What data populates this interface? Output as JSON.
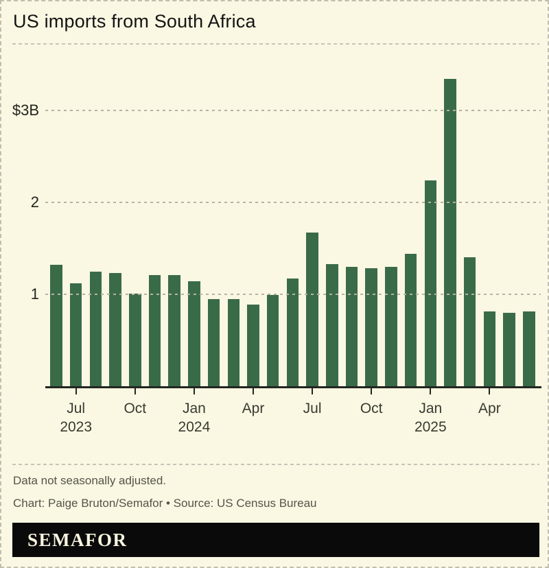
{
  "header": {
    "title": "US imports from South Africa"
  },
  "chart_data": {
    "type": "bar",
    "title": "US imports from South Africa",
    "x": [
      "Jun 2023",
      "Jul 2023",
      "Aug 2023",
      "Sep 2023",
      "Oct 2023",
      "Nov 2023",
      "Dec 2023",
      "Jan 2024",
      "Feb 2024",
      "Mar 2024",
      "Apr 2024",
      "May 2024",
      "Jun 2024",
      "Jul 2024",
      "Aug 2024",
      "Sep 2024",
      "Oct 2024",
      "Nov 2024",
      "Dec 2024",
      "Jan 2025",
      "Feb 2025",
      "Mar 2025",
      "Apr 2025",
      "May 2025",
      "Jun 2025"
    ],
    "values": [
      1.32,
      1.12,
      1.25,
      1.23,
      1.01,
      1.21,
      1.21,
      1.14,
      0.95,
      0.95,
      0.89,
      0.99,
      1.17,
      1.67,
      1.33,
      1.3,
      1.28,
      1.3,
      1.44,
      2.24,
      3.34,
      1.4,
      0.81,
      0.8,
      0.81
    ],
    "y_ticks": [
      {
        "value": 3,
        "label": "$3B"
      },
      {
        "value": 2,
        "label": "2"
      },
      {
        "value": 1,
        "label": "1"
      }
    ],
    "x_ticks": [
      {
        "index": 1,
        "label": "Jul",
        "year": "2023"
      },
      {
        "index": 4,
        "label": "Oct"
      },
      {
        "index": 7,
        "label": "Jan",
        "year": "2024"
      },
      {
        "index": 10,
        "label": "Apr"
      },
      {
        "index": 13,
        "label": "Jul"
      },
      {
        "index": 16,
        "label": "Oct"
      },
      {
        "index": 19,
        "label": "Jan",
        "year": "2025"
      },
      {
        "index": 22,
        "label": "Apr"
      }
    ],
    "ylim": [
      0,
      3.45
    ],
    "grid": "horizontal-dashed",
    "legend": "none",
    "bar_color": "#3a6b49"
  },
  "footer": {
    "note": "Data not seasonally adjusted.",
    "credit": "Chart: Paige Bruton/Semafor • Source: US Census Bureau",
    "logo": "SEMAFOR"
  },
  "colors": {
    "background": "#faf7e3",
    "bar": "#3a6b49",
    "axis": "#22261f",
    "gridline": "#b6b3a4",
    "logo_bg": "#0a0a0a",
    "logo_text": "#f7f4e0"
  }
}
